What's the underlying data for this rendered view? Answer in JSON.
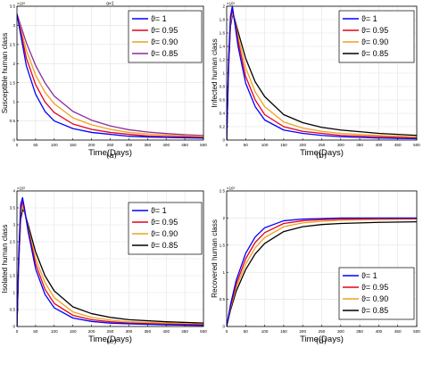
{
  "chart_data": [
    {
      "type": "line",
      "panel_label": "(a)",
      "title": "α≠1",
      "xlabel": "Time(Days)",
      "ylabel": "Susceptible human class",
      "y_exponent": "×10⁶",
      "xlim": [
        0,
        500
      ],
      "ylim": [
        0,
        3.5
      ],
      "x_ticks": [
        0,
        50,
        100,
        150,
        200,
        250,
        300,
        350,
        400,
        450,
        500
      ],
      "y_ticks": [
        0,
        0.5,
        1,
        1.5,
        2,
        2.5,
        3,
        3.5
      ],
      "y_tick_labels": [
        "0",
        "0.5",
        "1",
        "1.5",
        "2",
        "2.5",
        "3",
        "3.5"
      ],
      "grid": true,
      "legend_position": "top-right",
      "x": [
        0,
        25,
        50,
        75,
        100,
        150,
        200,
        250,
        300,
        350,
        400,
        450,
        500
      ],
      "series": [
        {
          "name": "ϑ= 1",
          "color": "#0000ff",
          "values": [
            3.3,
            1.95,
            1.2,
            0.75,
            0.5,
            0.3,
            0.2,
            0.15,
            0.1,
            0.08,
            0.07,
            0.06,
            0.05
          ]
        },
        {
          "name": "ϑ= 0.95",
          "color": "#e6001a",
          "values": [
            3.3,
            2.15,
            1.45,
            1.0,
            0.72,
            0.42,
            0.28,
            0.2,
            0.15,
            0.11,
            0.09,
            0.08,
            0.07
          ]
        },
        {
          "name": "ϑ= 0.90",
          "color": "#f0a020",
          "values": [
            3.3,
            2.35,
            1.7,
            1.25,
            0.95,
            0.58,
            0.4,
            0.28,
            0.2,
            0.16,
            0.13,
            0.11,
            0.1
          ]
        },
        {
          "name": "ϑ= 0.85",
          "color": "#8a2b9e",
          "values": [
            3.3,
            2.55,
            1.95,
            1.5,
            1.15,
            0.75,
            0.52,
            0.37,
            0.27,
            0.21,
            0.17,
            0.14,
            0.12
          ]
        }
      ]
    },
    {
      "type": "line",
      "panel_label": "(b)",
      "title": "",
      "xlabel": "Time(Days)",
      "ylabel": "Infected human class",
      "y_exponent": "×10⁵",
      "xlim": [
        0,
        500
      ],
      "ylim": [
        0,
        2
      ],
      "x_ticks": [
        0,
        50,
        100,
        150,
        200,
        250,
        300,
        350,
        400,
        450,
        500
      ],
      "y_ticks": [
        0,
        0.2,
        0.4,
        0.6,
        0.8,
        1,
        1.2,
        1.4,
        1.6,
        1.8,
        2
      ],
      "y_tick_labels": [
        "0",
        "0.2",
        "0.4",
        "0.6",
        "0.8",
        "1",
        "1.2",
        "1.4",
        "1.6",
        "1.8",
        "2"
      ],
      "grid": true,
      "legend_position": "top-right",
      "x": [
        0,
        5,
        10,
        15,
        20,
        30,
        50,
        75,
        100,
        150,
        200,
        250,
        300,
        400,
        500
      ],
      "series": [
        {
          "name": "ϑ= 1",
          "color": "#0000ff",
          "values": [
            0.0,
            1.2,
            1.85,
            2.0,
            1.8,
            1.4,
            0.85,
            0.5,
            0.3,
            0.15,
            0.1,
            0.07,
            0.05,
            0.03,
            0.02
          ]
        },
        {
          "name": "ϑ= 0.95",
          "color": "#e6001a",
          "values": [
            0.0,
            1.15,
            1.8,
            1.95,
            1.82,
            1.48,
            0.95,
            0.6,
            0.38,
            0.2,
            0.13,
            0.1,
            0.07,
            0.05,
            0.03
          ]
        },
        {
          "name": "ϑ= 0.90",
          "color": "#f0a020",
          "values": [
            0.0,
            1.1,
            1.75,
            1.9,
            1.82,
            1.55,
            1.08,
            0.72,
            0.5,
            0.27,
            0.18,
            0.13,
            0.1,
            0.07,
            0.05
          ]
        },
        {
          "name": "ϑ= 0.85",
          "color": "#000000",
          "values": [
            0.0,
            1.05,
            1.7,
            1.87,
            1.83,
            1.62,
            1.22,
            0.87,
            0.65,
            0.38,
            0.26,
            0.19,
            0.15,
            0.1,
            0.07
          ]
        }
      ]
    },
    {
      "type": "line",
      "panel_label": "(c)",
      "title": "",
      "xlabel": "Time(Days)",
      "ylabel": "Isolated human class",
      "y_exponent": "×10⁵",
      "xlim": [
        0,
        500
      ],
      "ylim": [
        0,
        4
      ],
      "x_ticks": [
        0,
        50,
        100,
        150,
        200,
        250,
        300,
        350,
        400,
        450,
        500
      ],
      "y_ticks": [
        0,
        0.5,
        1,
        1.5,
        2,
        2.5,
        3,
        3.5,
        4
      ],
      "y_tick_labels": [
        "0",
        "0.5",
        "1",
        "1.5",
        "2",
        "2.5",
        "3",
        "3.5",
        "4"
      ],
      "grid": true,
      "legend_position": "top-right",
      "x": [
        0,
        5,
        10,
        15,
        20,
        30,
        50,
        75,
        100,
        150,
        200,
        250,
        300,
        400,
        500
      ],
      "series": [
        {
          "name": "ϑ= 1",
          "color": "#0000ff",
          "values": [
            0.0,
            2.2,
            3.6,
            3.8,
            3.5,
            2.8,
            1.7,
            0.95,
            0.55,
            0.25,
            0.15,
            0.1,
            0.08,
            0.05,
            0.03
          ]
        },
        {
          "name": "ϑ= 0.95",
          "color": "#e6001a",
          "values": [
            0.0,
            2.1,
            3.45,
            3.68,
            3.45,
            2.85,
            1.85,
            1.1,
            0.68,
            0.33,
            0.2,
            0.14,
            0.1,
            0.07,
            0.05
          ]
        },
        {
          "name": "ϑ= 0.90",
          "color": "#f0a020",
          "values": [
            0.0,
            2.0,
            3.3,
            3.55,
            3.4,
            2.9,
            2.0,
            1.3,
            0.85,
            0.43,
            0.27,
            0.19,
            0.14,
            0.1,
            0.07
          ]
        },
        {
          "name": "ϑ= 0.85",
          "color": "#000000",
          "values": [
            0.0,
            1.9,
            3.15,
            3.45,
            3.38,
            3.0,
            2.2,
            1.5,
            1.05,
            0.58,
            0.38,
            0.27,
            0.2,
            0.14,
            0.1
          ]
        }
      ]
    },
    {
      "type": "line",
      "panel_label": "(d)",
      "title": "",
      "xlabel": "Time(Days)",
      "ylabel": "Recovered human class",
      "y_exponent": "×10⁶",
      "xlim": [
        0,
        500
      ],
      "ylim": [
        0,
        2.5
      ],
      "x_ticks": [
        0,
        50,
        100,
        150,
        200,
        250,
        300,
        350,
        400,
        450,
        500
      ],
      "y_ticks": [
        0,
        0.5,
        1,
        1.5,
        2,
        2.5
      ],
      "y_tick_labels": [
        "0",
        "0.5",
        "1",
        "1.5",
        "2",
        "2.5"
      ],
      "grid": true,
      "legend_position": "bottom-right",
      "x": [
        0,
        10,
        25,
        50,
        75,
        100,
        150,
        200,
        250,
        300,
        400,
        500
      ],
      "series": [
        {
          "name": "ϑ= 1",
          "color": "#0000ff",
          "values": [
            0.0,
            0.4,
            0.85,
            1.35,
            1.65,
            1.82,
            1.95,
            1.98,
            1.99,
            2.0,
            2.0,
            2.0
          ]
        },
        {
          "name": "ϑ= 0.95",
          "color": "#e6001a",
          "values": [
            0.0,
            0.37,
            0.78,
            1.25,
            1.55,
            1.73,
            1.9,
            1.95,
            1.97,
            1.98,
            1.99,
            1.99
          ]
        },
        {
          "name": "ϑ= 0.90",
          "color": "#f0a020",
          "values": [
            0.0,
            0.34,
            0.72,
            1.15,
            1.45,
            1.64,
            1.84,
            1.91,
            1.94,
            1.96,
            1.97,
            1.98
          ]
        },
        {
          "name": "ϑ= 0.85",
          "color": "#000000",
          "values": [
            0.0,
            0.3,
            0.65,
            1.05,
            1.34,
            1.53,
            1.75,
            1.84,
            1.88,
            1.9,
            1.92,
            1.93
          ]
        }
      ]
    }
  ]
}
